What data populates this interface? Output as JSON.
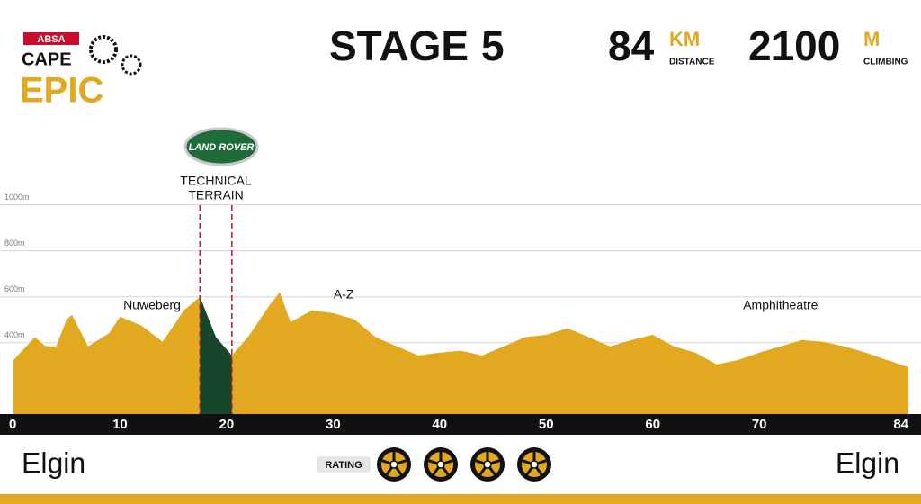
{
  "header": {
    "brand_top": "ABSA",
    "brand_mid": "CAPE",
    "brand_big": "EPIC",
    "stage_label": "STAGE",
    "stage_number": "5",
    "distance_value": "84",
    "distance_unit": "KM",
    "distance_label": "DISTANCE",
    "climb_value": "2100",
    "climb_unit": "M",
    "climb_label": "CLIMBING",
    "sponsor": "LAND ROVER"
  },
  "chart_data": {
    "type": "area",
    "color": "#e2a81f",
    "x": [
      0,
      2,
      3,
      4,
      5,
      5.5,
      7,
      9,
      10,
      12,
      14,
      16,
      17.5,
      19,
      20.5,
      22,
      24,
      25,
      26,
      28,
      30,
      32,
      34,
      36,
      38,
      40,
      42,
      44,
      46,
      48,
      50,
      52,
      54,
      56,
      58,
      60,
      62,
      64,
      66,
      68,
      70,
      72,
      74,
      76,
      78,
      80,
      82,
      84
    ],
    "values": [
      325,
      424,
      385,
      384,
      502,
      521,
      384,
      443,
      514,
      475,
      404,
      541,
      600,
      424,
      345,
      424,
      561,
      620,
      490,
      541,
      529,
      502,
      424,
      384,
      345,
      357,
      365,
      345,
      384,
      424,
      435,
      463,
      424,
      384,
      412,
      435,
      384,
      357,
      306,
      325,
      357,
      384,
      412,
      404,
      384,
      357,
      325,
      294
    ],
    "xlim": [
      0,
      84
    ],
    "xticks": [
      0,
      10,
      20,
      30,
      40,
      50,
      60,
      70,
      84
    ],
    "ylim": [
      90,
      1100
    ],
    "yticks": [
      {
        "value": 400,
        "label": "400m"
      },
      {
        "value": 600,
        "label": "600m"
      },
      {
        "value": 800,
        "label": "800m"
      },
      {
        "value": 1000,
        "label": "1000m"
      }
    ],
    "grid": true,
    "highlight": {
      "label_1": "TECHNICAL",
      "label_2": "TERRAIN",
      "from": 17.5,
      "to": 20.5,
      "color": "#17472a"
    },
    "annotations": [
      {
        "text": "Nuweberg",
        "x": 13
      },
      {
        "text": "A-Z",
        "x": 31
      },
      {
        "text": "Amphitheatre",
        "x": 72
      }
    ]
  },
  "footer": {
    "start": "Elgin",
    "finish": "Elgin",
    "rating_label": "RATING",
    "rating": 4
  }
}
